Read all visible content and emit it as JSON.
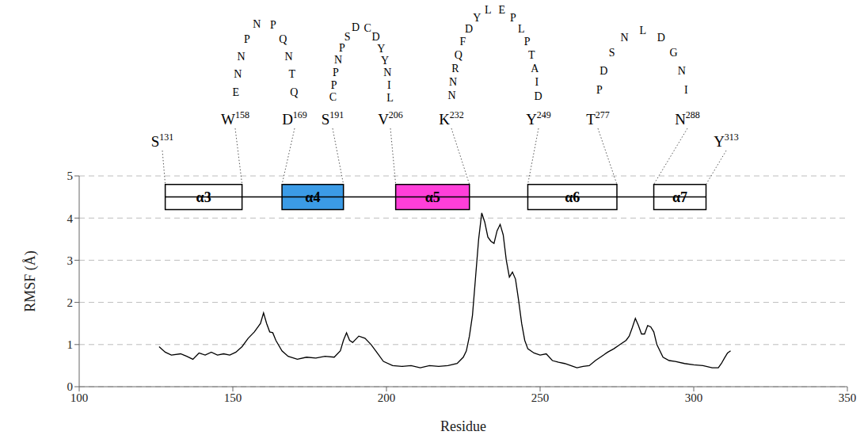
{
  "chart_data": {
    "type": "line",
    "x_label": "Residue",
    "y_label": "RMSF (Å)",
    "color": "#000000",
    "xlim": [
      100,
      350
    ],
    "xticks": [
      100,
      150,
      200,
      250,
      300,
      350
    ],
    "ylim": [
      0,
      5
    ],
    "yticks": [
      0,
      1,
      2,
      3,
      4,
      5
    ],
    "grid": true,
    "x": [
      126,
      128,
      130,
      133,
      135,
      137,
      139,
      141,
      143,
      145,
      147,
      149,
      151,
      153,
      155,
      157,
      159,
      160,
      161,
      162,
      163,
      164,
      166,
      168,
      171,
      174,
      177,
      180,
      183,
      185,
      186,
      187,
      188,
      189,
      191,
      193,
      195,
      197,
      199,
      202,
      205,
      208,
      211,
      214,
      217,
      220,
      223,
      225,
      226,
      227,
      228,
      229,
      230,
      231,
      232,
      233,
      234,
      235,
      236,
      237,
      238,
      239,
      240,
      241,
      242,
      243,
      244,
      245,
      246,
      248,
      250,
      252,
      254,
      256,
      258,
      260,
      262,
      264,
      266,
      268,
      270,
      272,
      274,
      276,
      278,
      279,
      280,
      281,
      282,
      283,
      284,
      285,
      286,
      287,
      288,
      290,
      292,
      294,
      297,
      300,
      303,
      306,
      308,
      309,
      310,
      311,
      312
    ],
    "values": [
      0.95,
      0.82,
      0.75,
      0.78,
      0.72,
      0.65,
      0.8,
      0.75,
      0.82,
      0.75,
      0.78,
      0.75,
      0.82,
      0.95,
      1.15,
      1.3,
      1.5,
      1.75,
      1.5,
      1.3,
      1.28,
      1.1,
      0.85,
      0.72,
      0.65,
      0.7,
      0.68,
      0.72,
      0.7,
      0.85,
      1.1,
      1.28,
      1.1,
      1.05,
      1.2,
      1.15,
      1.0,
      0.8,
      0.6,
      0.5,
      0.48,
      0.5,
      0.45,
      0.5,
      0.48,
      0.5,
      0.55,
      0.7,
      0.85,
      1.2,
      1.7,
      2.6,
      3.5,
      4.12,
      3.9,
      3.55,
      3.45,
      3.4,
      3.7,
      3.85,
      3.6,
      3.0,
      2.6,
      2.72,
      2.55,
      2.05,
      1.5,
      1.1,
      0.9,
      0.8,
      0.75,
      0.78,
      0.62,
      0.58,
      0.55,
      0.5,
      0.45,
      0.48,
      0.5,
      0.62,
      0.72,
      0.82,
      0.9,
      1.0,
      1.1,
      1.2,
      1.4,
      1.62,
      1.45,
      1.25,
      1.25,
      1.45,
      1.42,
      1.3,
      1.0,
      0.7,
      0.62,
      0.6,
      0.55,
      0.52,
      0.5,
      0.45,
      0.45,
      0.55,
      0.68,
      0.8,
      0.85
    ],
    "annotations": {
      "helices": [
        {
          "name": "α3",
          "color": "#ffffff",
          "x": [
            128,
            153
          ],
          "y": [
            4.2,
            4.8
          ],
          "start": {
            "residue": "S",
            "number": 131
          },
          "end": {
            "residue": "W",
            "number": 158
          }
        },
        {
          "name": "α4",
          "color": "#3b9be6",
          "x": [
            166,
            186
          ],
          "y": [
            4.2,
            4.8
          ],
          "start": {
            "residue": "D",
            "number": 169
          },
          "end": {
            "residue": "S",
            "number": 191
          }
        },
        {
          "name": "α5",
          "color": "#ff3fd9",
          "x": [
            203,
            227
          ],
          "y": [
            4.2,
            4.8
          ],
          "start": {
            "residue": "V",
            "number": 206
          },
          "end": {
            "residue": "K",
            "number": 232
          }
        },
        {
          "name": "α6",
          "color": "#ffffff",
          "x": [
            246,
            275
          ],
          "y": [
            4.2,
            4.8
          ],
          "start": {
            "residue": "Y",
            "number": 249
          },
          "end": {
            "residue": "T",
            "number": 277
          }
        },
        {
          "name": "α7",
          "color": "#ffffff",
          "x": [
            287,
            304
          ],
          "y": [
            4.2,
            4.8
          ],
          "start": {
            "residue": "N",
            "number": 288
          },
          "end": {
            "residue": "Y",
            "number": 313
          }
        }
      ],
      "loops": [
        [
          "E",
          "N",
          "N",
          "P",
          "N",
          "P",
          "Q",
          "N",
          "T",
          "Q"
        ],
        [
          "C",
          "P",
          "P",
          "N",
          "P",
          "S",
          "D",
          "C",
          "D",
          "Y",
          "Y",
          "N",
          "I",
          "L"
        ],
        [
          "N",
          "N",
          "R",
          "Q",
          "F",
          "D",
          "Y",
          "L",
          "E",
          "P",
          "L",
          "P",
          "T",
          "A",
          "I",
          "D"
        ],
        [
          "P",
          "D",
          "S",
          "N",
          "L",
          "D",
          "G",
          "N",
          "I"
        ]
      ]
    }
  }
}
